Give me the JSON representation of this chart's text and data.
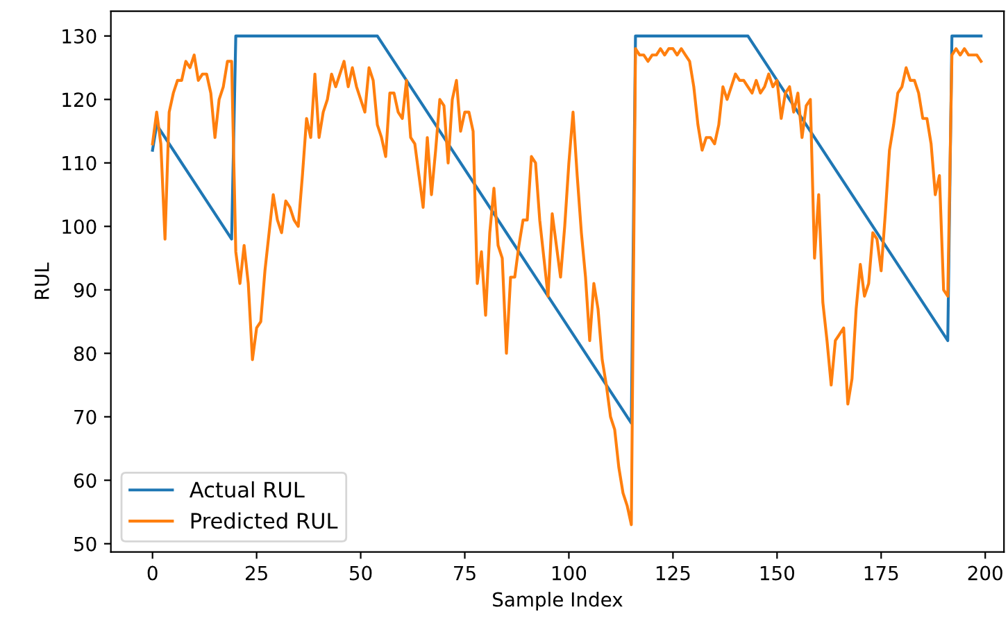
{
  "chart_data": {
    "type": "line",
    "xlabel": "Sample Index",
    "ylabel": "RUL",
    "xlim": [
      -10,
      204.5
    ],
    "ylim": [
      48.7,
      133.9
    ],
    "xticks": [
      0,
      25,
      50,
      75,
      100,
      125,
      150,
      175,
      200
    ],
    "yticks": [
      50,
      60,
      70,
      80,
      90,
      100,
      110,
      120,
      130
    ],
    "grid": false,
    "legend": "bottom left",
    "marker": "none",
    "line_style": "solid",
    "series": [
      {
        "name": "Actual RUL",
        "color": "#1f77b4",
        "x": [
          0,
          1,
          19,
          20,
          54,
          115,
          116,
          143,
          191,
          192,
          199
        ],
        "values": [
          112,
          116,
          98,
          130,
          130,
          69,
          130,
          130,
          82,
          130,
          130
        ]
      },
      {
        "name": "Predicted RUL",
        "color": "#ff7f0e",
        "x": [
          0,
          1,
          2,
          3,
          4,
          5,
          6,
          7,
          8,
          9,
          10,
          11,
          12,
          13,
          14,
          15,
          16,
          17,
          18,
          19,
          20,
          21,
          22,
          23,
          24,
          25,
          26,
          27,
          28,
          29,
          30,
          31,
          32,
          33,
          34,
          35,
          36,
          37,
          38,
          39,
          40,
          41,
          42,
          43,
          44,
          45,
          46,
          47,
          48,
          49,
          50,
          51,
          52,
          53,
          54,
          55,
          56,
          57,
          58,
          59,
          60,
          61,
          62,
          63,
          64,
          65,
          66,
          67,
          68,
          69,
          70,
          71,
          72,
          73,
          74,
          75,
          76,
          77,
          78,
          79,
          80,
          81,
          82,
          83,
          84,
          85,
          86,
          87,
          88,
          89,
          90,
          91,
          92,
          93,
          94,
          95,
          96,
          97,
          98,
          99,
          100,
          101,
          102,
          103,
          104,
          105,
          106,
          107,
          108,
          109,
          110,
          111,
          112,
          113,
          114,
          115,
          116,
          117,
          118,
          119,
          120,
          121,
          122,
          123,
          124,
          125,
          126,
          127,
          128,
          129,
          130,
          131,
          132,
          133,
          134,
          135,
          136,
          137,
          138,
          139,
          140,
          141,
          142,
          143,
          144,
          145,
          146,
          147,
          148,
          149,
          150,
          151,
          152,
          153,
          154,
          155,
          156,
          157,
          158,
          159,
          160,
          161,
          162,
          163,
          164,
          165,
          166,
          167,
          168,
          169,
          170,
          171,
          172,
          173,
          174,
          175,
          176,
          177,
          178,
          179,
          180,
          181,
          182,
          183,
          184,
          185,
          186,
          187,
          188,
          189,
          190,
          191,
          192,
          193,
          194,
          195,
          196,
          197,
          198,
          199
        ],
        "values": [
          113,
          118,
          113,
          98,
          118,
          121,
          123,
          123,
          126,
          125,
          127,
          123,
          124,
          124,
          121,
          114,
          120,
          122,
          126,
          126,
          96,
          91,
          97,
          91,
          79,
          84,
          85,
          93,
          99,
          105,
          101,
          99,
          104,
          103,
          101,
          100,
          108,
          117,
          114,
          124,
          114,
          118,
          120,
          124,
          122,
          124,
          126,
          122,
          125,
          122,
          120,
          118,
          125,
          123,
          116,
          114,
          111,
          121,
          121,
          118,
          117,
          123,
          114,
          113,
          108,
          103,
          114,
          105,
          112,
          120,
          119,
          110,
          120,
          123,
          115,
          118,
          118,
          115,
          91,
          96,
          86,
          99,
          106,
          97,
          95,
          80,
          92,
          92,
          97,
          101,
          101,
          111,
          110,
          101,
          95,
          89,
          102,
          97,
          92,
          100,
          110,
          118,
          108,
          99,
          92,
          82,
          91,
          87,
          79,
          75,
          70,
          68,
          62,
          58,
          56,
          53,
          128,
          127,
          127,
          126,
          127,
          127,
          128,
          127,
          128,
          128,
          127,
          128,
          127,
          126,
          122,
          116,
          112,
          114,
          114,
          113,
          116,
          122,
          120,
          122,
          124,
          123,
          123,
          122,
          121,
          123,
          121,
          122,
          124,
          122,
          123,
          117,
          121,
          122,
          118,
          121,
          114,
          119,
          120,
          95,
          105,
          88,
          82,
          75,
          82,
          83,
          84,
          72,
          76,
          87,
          94,
          89,
          91,
          99,
          98,
          93,
          102,
          112,
          116,
          121,
          122,
          125,
          123,
          123,
          121,
          117,
          117,
          113,
          105,
          108,
          90,
          89,
          127,
          128,
          127,
          128,
          127,
          127,
          127,
          126
        ]
      }
    ]
  }
}
